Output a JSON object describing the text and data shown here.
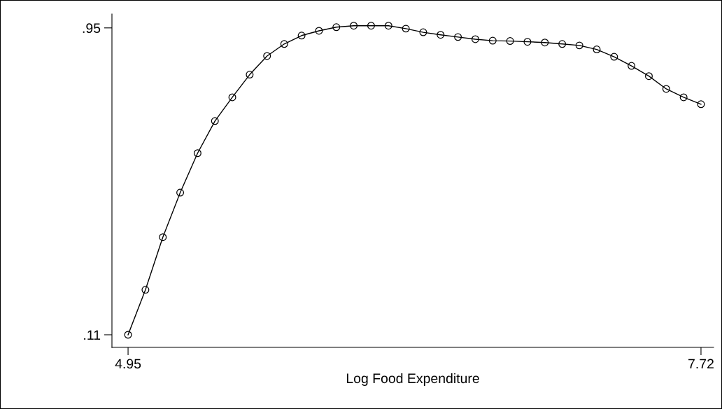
{
  "chart_data": {
    "type": "line",
    "xlabel": "Log Food Expenditure",
    "x": [
      4.95,
      5.034,
      5.118,
      5.202,
      5.286,
      5.37,
      5.454,
      5.538,
      5.622,
      5.705,
      5.789,
      5.873,
      5.957,
      6.041,
      6.125,
      6.209,
      6.293,
      6.377,
      6.461,
      6.545,
      6.629,
      6.713,
      6.797,
      6.881,
      6.965,
      7.049,
      7.132,
      7.216,
      7.3,
      7.384,
      7.468,
      7.552,
      7.636,
      7.72
    ],
    "series": [
      {
        "color": "#000000",
        "values": [
          0.11,
          0.233,
          0.377,
          0.499,
          0.607,
          0.695,
          0.76,
          0.822,
          0.873,
          0.906,
          0.929,
          0.942,
          0.952,
          0.956,
          0.956,
          0.956,
          0.948,
          0.938,
          0.931,
          0.925,
          0.919,
          0.915,
          0.914,
          0.912,
          0.91,
          0.906,
          0.902,
          0.891,
          0.871,
          0.846,
          0.818,
          0.783,
          0.76,
          0.741
        ]
      }
    ],
    "xlim": [
      4.872,
      7.781
    ],
    "ylim": [
      0.0755,
      0.988
    ],
    "xticks": [
      4.95,
      7.72
    ],
    "yticks": [
      {
        "value": 0.95,
        "label": ".95"
      },
      {
        "value": 0.11,
        "label": ".11"
      }
    ],
    "marker": "circle",
    "line_style": "solid",
    "grid": false,
    "legend": false
  }
}
